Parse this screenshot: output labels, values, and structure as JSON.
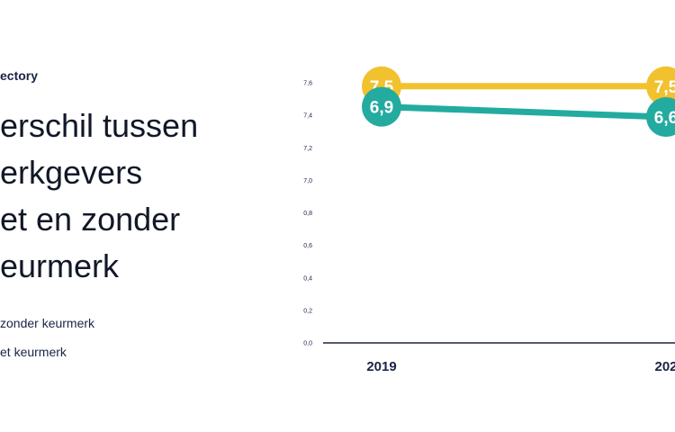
{
  "brand": "ectory",
  "title_lines": [
    "erschil tussen",
    "erkgevers",
    "et en zonder",
    "eurmerk"
  ],
  "legend": [
    "zonder keurmerk",
    "et keurmerk"
  ],
  "colors": {
    "yellow": "#f2c12e",
    "teal": "#23aba0",
    "axis": "#1b2446"
  },
  "chart_data": {
    "type": "line",
    "x": [
      "2019",
      "202"
    ],
    "ylim": [
      0,
      7.6
    ],
    "yticks": [
      "0,0",
      "0,2",
      "0,4",
      "0,6",
      "0,8",
      "7,0",
      "7,2",
      "7,4",
      "7,6"
    ],
    "series": [
      {
        "values": [
          7.5,
          7.5
        ],
        "labels": [
          "7,5",
          "7,5"
        ],
        "color": "#f2c12e"
      },
      {
        "values": [
          6.9,
          6.6
        ],
        "labels": [
          "6,9",
          "6,6"
        ],
        "color": "#23aba0"
      }
    ],
    "legend_position": "left",
    "grid": false
  }
}
